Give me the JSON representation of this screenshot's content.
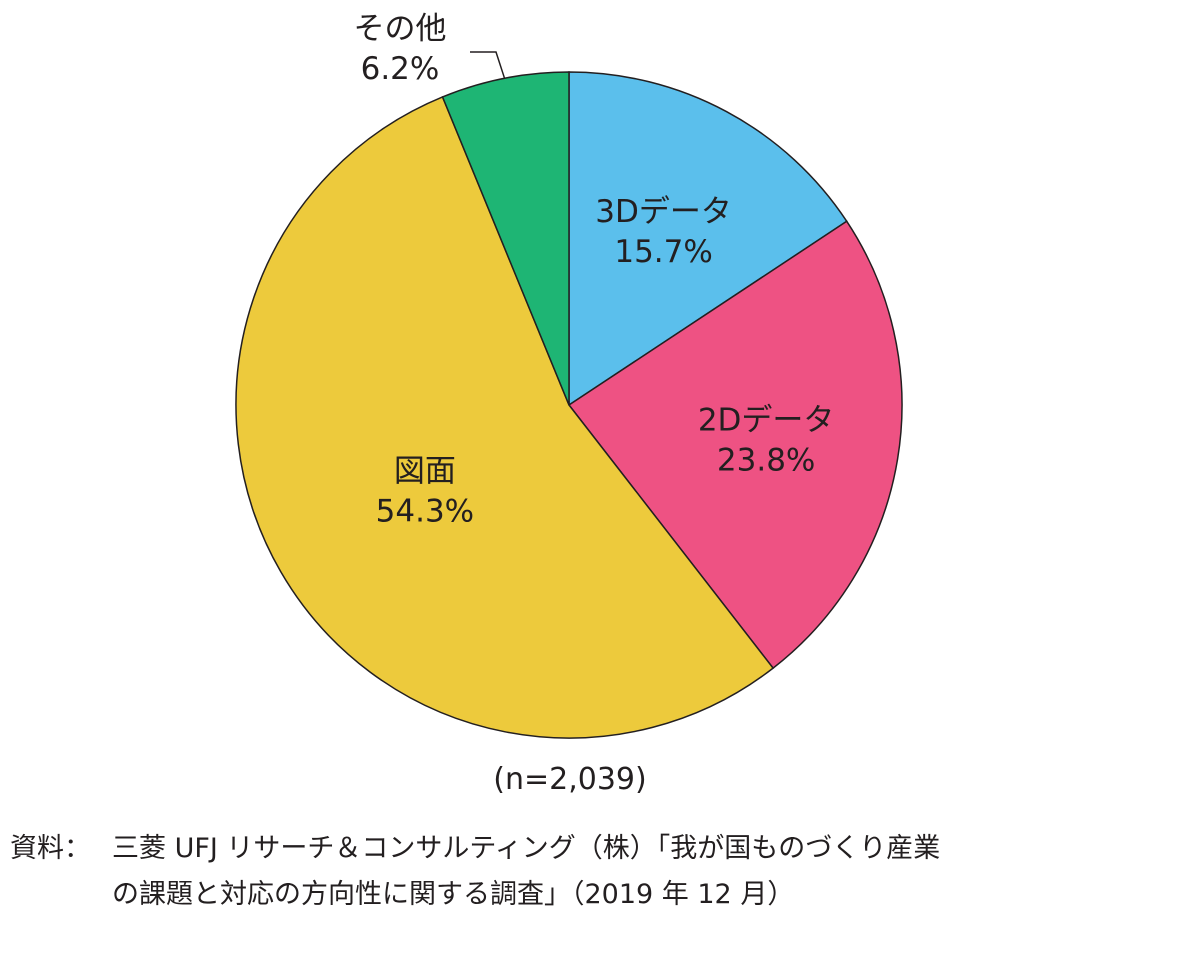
{
  "chart_data": {
    "type": "pie",
    "categories": [
      "3Dデータ",
      "2Dデータ",
      "図面",
      "その他"
    ],
    "values": [
      15.7,
      23.8,
      54.3,
      6.2
    ],
    "value_labels": [
      "15.7%",
      "23.8%",
      "54.3%",
      "6.2%"
    ],
    "colors": [
      "#5bbfec",
      "#ee5283",
      "#edca3c",
      "#1eb574"
    ],
    "start_angle_deg": 0,
    "direction": "clockwise",
    "sample_size": "(n=2,039)"
  },
  "source": {
    "prefix": "資料：",
    "line1": "三菱 UFJ リサーチ＆コンサルティング（株）「我が国ものづくり産業",
    "line2": "の課題と対応の方向性に関する調査」（2019 年 12 月）"
  }
}
